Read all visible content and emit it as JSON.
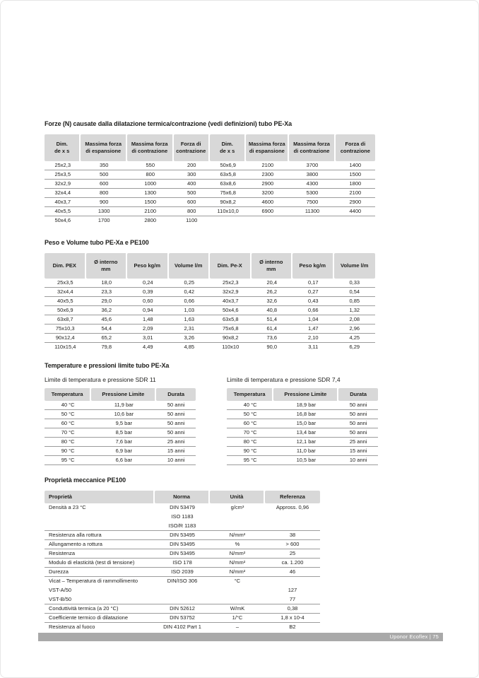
{
  "forces": {
    "title": "Forze (N) causate dalla dilatazione termica/contrazione (vedi definizioni) tubo PE-Xa",
    "table": {
      "columns": [
        "Dim.\nde x s",
        "Massima forza\ndi espansione",
        "Massima forza\ndi contrazione",
        "Forza di\ncontrazione",
        "Dim.\nde x s",
        "Massima forza\ndi espansione",
        "Massima forza\ndi contrazione",
        "Forza di\ncontrazione"
      ],
      "rows": [
        [
          "25x2,3",
          "350",
          "550",
          "200",
          "50x6,9",
          "2100",
          "3700",
          "1400"
        ],
        [
          "25x3,5",
          "500",
          "800",
          "300",
          "63x5,8",
          "2300",
          "3800",
          "1500"
        ],
        [
          "32x2,9",
          "600",
          "1000",
          "400",
          "63x8,6",
          "2900",
          "4300",
          "1800"
        ],
        [
          "32x4,4",
          "800",
          "1300",
          "500",
          "75x6,8",
          "3200",
          "5300",
          "2100"
        ],
        [
          "40x3,7",
          "900",
          "1500",
          "600",
          "90x8,2",
          "4600",
          "7500",
          "2900"
        ],
        [
          "40x5,5",
          "1300",
          "2100",
          "800",
          "110x10,0",
          "6900",
          "11300",
          "4400"
        ],
        [
          "50x4,6",
          "1700",
          "2800",
          "1100",
          "",
          "",
          "",
          ""
        ]
      ]
    }
  },
  "peso": {
    "title": "Peso e Volume tubo PE-Xa e PE100",
    "table": {
      "columns": [
        "Dim. PEX",
        "Ø interno\nmm",
        "Peso kg/m",
        "Volume l/m",
        "Dim. Pe-X",
        "Ø interno\nmm",
        "Peso kg/m",
        "Volume l/m"
      ],
      "rows": [
        [
          "25x3,5",
          "18,0",
          "0,24",
          "0,25",
          "25x2,3",
          "20,4",
          "0,17",
          "0,33"
        ],
        [
          "32x4,4",
          "23,3",
          "0,39",
          "0,42",
          "32x2,9",
          "26,2",
          "0,27",
          "0,54"
        ],
        [
          "40x5,5",
          "29,0",
          "0,60",
          "0,66",
          "40x3,7",
          "32,6",
          "0,43",
          "0,85"
        ],
        [
          "50x6,9",
          "36,2",
          "0,94",
          "1,03",
          "50x4,6",
          "40,8",
          "0,66",
          "1,32"
        ],
        [
          "63x8,7",
          "45,6",
          "1,48",
          "1,63",
          "63x5,8",
          "51,4",
          "1,04",
          "2,08"
        ],
        [
          "75x10,3",
          "54,4",
          "2,09",
          "2,31",
          "75x6,8",
          "61,4",
          "1,47",
          "2,96"
        ],
        [
          "90x12,4",
          "65,2",
          "3,01",
          "3,26",
          "90x8,2",
          "73,6",
          "2,10",
          "4,25"
        ],
        [
          "110x15,4",
          "79,8",
          "4,49",
          "4,85",
          "110x10",
          "90,0",
          "3,11",
          "6,29"
        ]
      ]
    }
  },
  "temp": {
    "title": "Temperature e pressioni limite tubo PE-Xa",
    "sdr11": {
      "subtitle": "Limite di temperatura e pressione SDR 11",
      "table": {
        "columns": [
          "Temperatura",
          "Pressione Limite",
          "Durata"
        ],
        "rows": [
          [
            "40 °C",
            "11,9 bar",
            "50 anni"
          ],
          [
            "50 °C",
            "10,6 bar",
            "50 anni"
          ],
          [
            "60 °C",
            "9,5 bar",
            "50 anni"
          ],
          [
            "70 °C",
            "8,5 bar",
            "50 anni"
          ],
          [
            "80 °C",
            "7,6 bar",
            "25 anni"
          ],
          [
            "90 °C",
            "6,9 bar",
            "15 anni"
          ],
          [
            "95 °C",
            "6,6 bar",
            "10 anni"
          ]
        ]
      }
    },
    "sdr74": {
      "subtitle": "Limite di temperatura e pressione SDR 7,4",
      "table": {
        "columns": [
          "Temperatura",
          "Pressione Limite",
          "Durata"
        ],
        "rows": [
          [
            "40 °C",
            "18,9 bar",
            "50 anni"
          ],
          [
            "50 °C",
            "16,8 bar",
            "50 anni"
          ],
          [
            "60 °C",
            "15,0 bar",
            "50 anni"
          ],
          [
            "70 °C",
            "13,4 bar",
            "50 anni"
          ],
          [
            "80 °C",
            "12,1 bar",
            "25 anni"
          ],
          [
            "90 °C",
            "11,0 bar",
            "15 anni"
          ],
          [
            "95 °C",
            "10,5 bar",
            "10 anni"
          ]
        ]
      }
    }
  },
  "props": {
    "title": "Proprietà meccanice PE100",
    "table": {
      "columns": [
        "Proprietà",
        "Norma",
        "Unità",
        "Referenza"
      ],
      "rows": [
        {
          "cells": [
            "Densità a 23 °C",
            "DIN 53479",
            "g/cm³",
            "Appross. 0,96"
          ],
          "rule": false
        },
        {
          "cells": [
            "",
            "ISO 1183",
            "",
            ""
          ],
          "rule": false
        },
        {
          "cells": [
            "",
            "ISO/R 1183",
            "",
            ""
          ],
          "rule": true
        },
        {
          "cells": [
            "Resistenza alla rottura",
            "DIN 53495",
            "N/mm²",
            "38"
          ],
          "rule": true
        },
        {
          "cells": [
            "Allungamento a rottura",
            "DIN 53495",
            "%",
            "> 600"
          ],
          "rule": true
        },
        {
          "cells": [
            "Resistenza",
            "DIN 53495",
            "N/mm²",
            "25"
          ],
          "rule": true
        },
        {
          "cells": [
            "Modulo di elasticità (test di tensione)",
            "ISO 178",
            "N/mm²",
            "ca. 1.200"
          ],
          "rule": true
        },
        {
          "cells": [
            "Durezza",
            "ISO 2039",
            "N/mm²",
            "46"
          ],
          "rule": true
        },
        {
          "cells": [
            "Vicat – Temperatura di rammollimento",
            "DIN/ISO 306",
            "°C",
            ""
          ],
          "rule": false
        },
        {
          "cells": [
            "VST-A/50",
            "",
            "",
            "127"
          ],
          "rule": false
        },
        {
          "cells": [
            "VST-B/50",
            "",
            "",
            "77"
          ],
          "rule": true
        },
        {
          "cells": [
            "Conduttività termica (a 20 °C)",
            "DIN 52612",
            "W/mK",
            "0,38"
          ],
          "rule": true
        },
        {
          "cells": [
            "Coefficiente termico di dilatazione",
            "DIN 53752",
            "1/°C",
            "1,8 x 10-4"
          ],
          "rule": true
        },
        {
          "cells": [
            "Resistenza al fuoco",
            "DIN 4102 Part 1",
            "–",
            "B2"
          ],
          "rule": false
        }
      ]
    }
  },
  "footer": {
    "text": "Uponor Ecoflex | 75"
  }
}
